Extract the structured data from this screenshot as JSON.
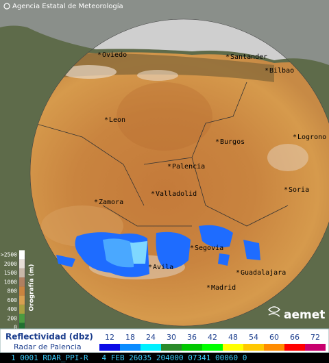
{
  "header": {
    "agency": "Agencia Estatal de Meteorología"
  },
  "cities": [
    "Oviedo",
    "Santander",
    "Bilbao",
    "Leon",
    "Burgos",
    "Logrono",
    "Palencia",
    "Soria",
    "Valladolid",
    "Zamora",
    "Segovia",
    "Avila",
    "Guadalajara",
    "Madrid"
  ],
  "orography": {
    "title": "Orografía (m)",
    "levels": [
      ">2500",
      2000,
      1500,
      1000,
      800,
      600,
      400,
      200,
      0
    ]
  },
  "legend": {
    "title": "Reflectividad (dbz)",
    "radar": "Radar de Palencia",
    "levels": [
      12,
      18,
      24,
      30,
      36,
      42,
      48,
      54,
      60,
      66,
      72
    ]
  },
  "logo": "aemet",
  "status": "1 0001 RDAR_PPI-R   4 FEB 26035 204000 07341 00060 0"
}
